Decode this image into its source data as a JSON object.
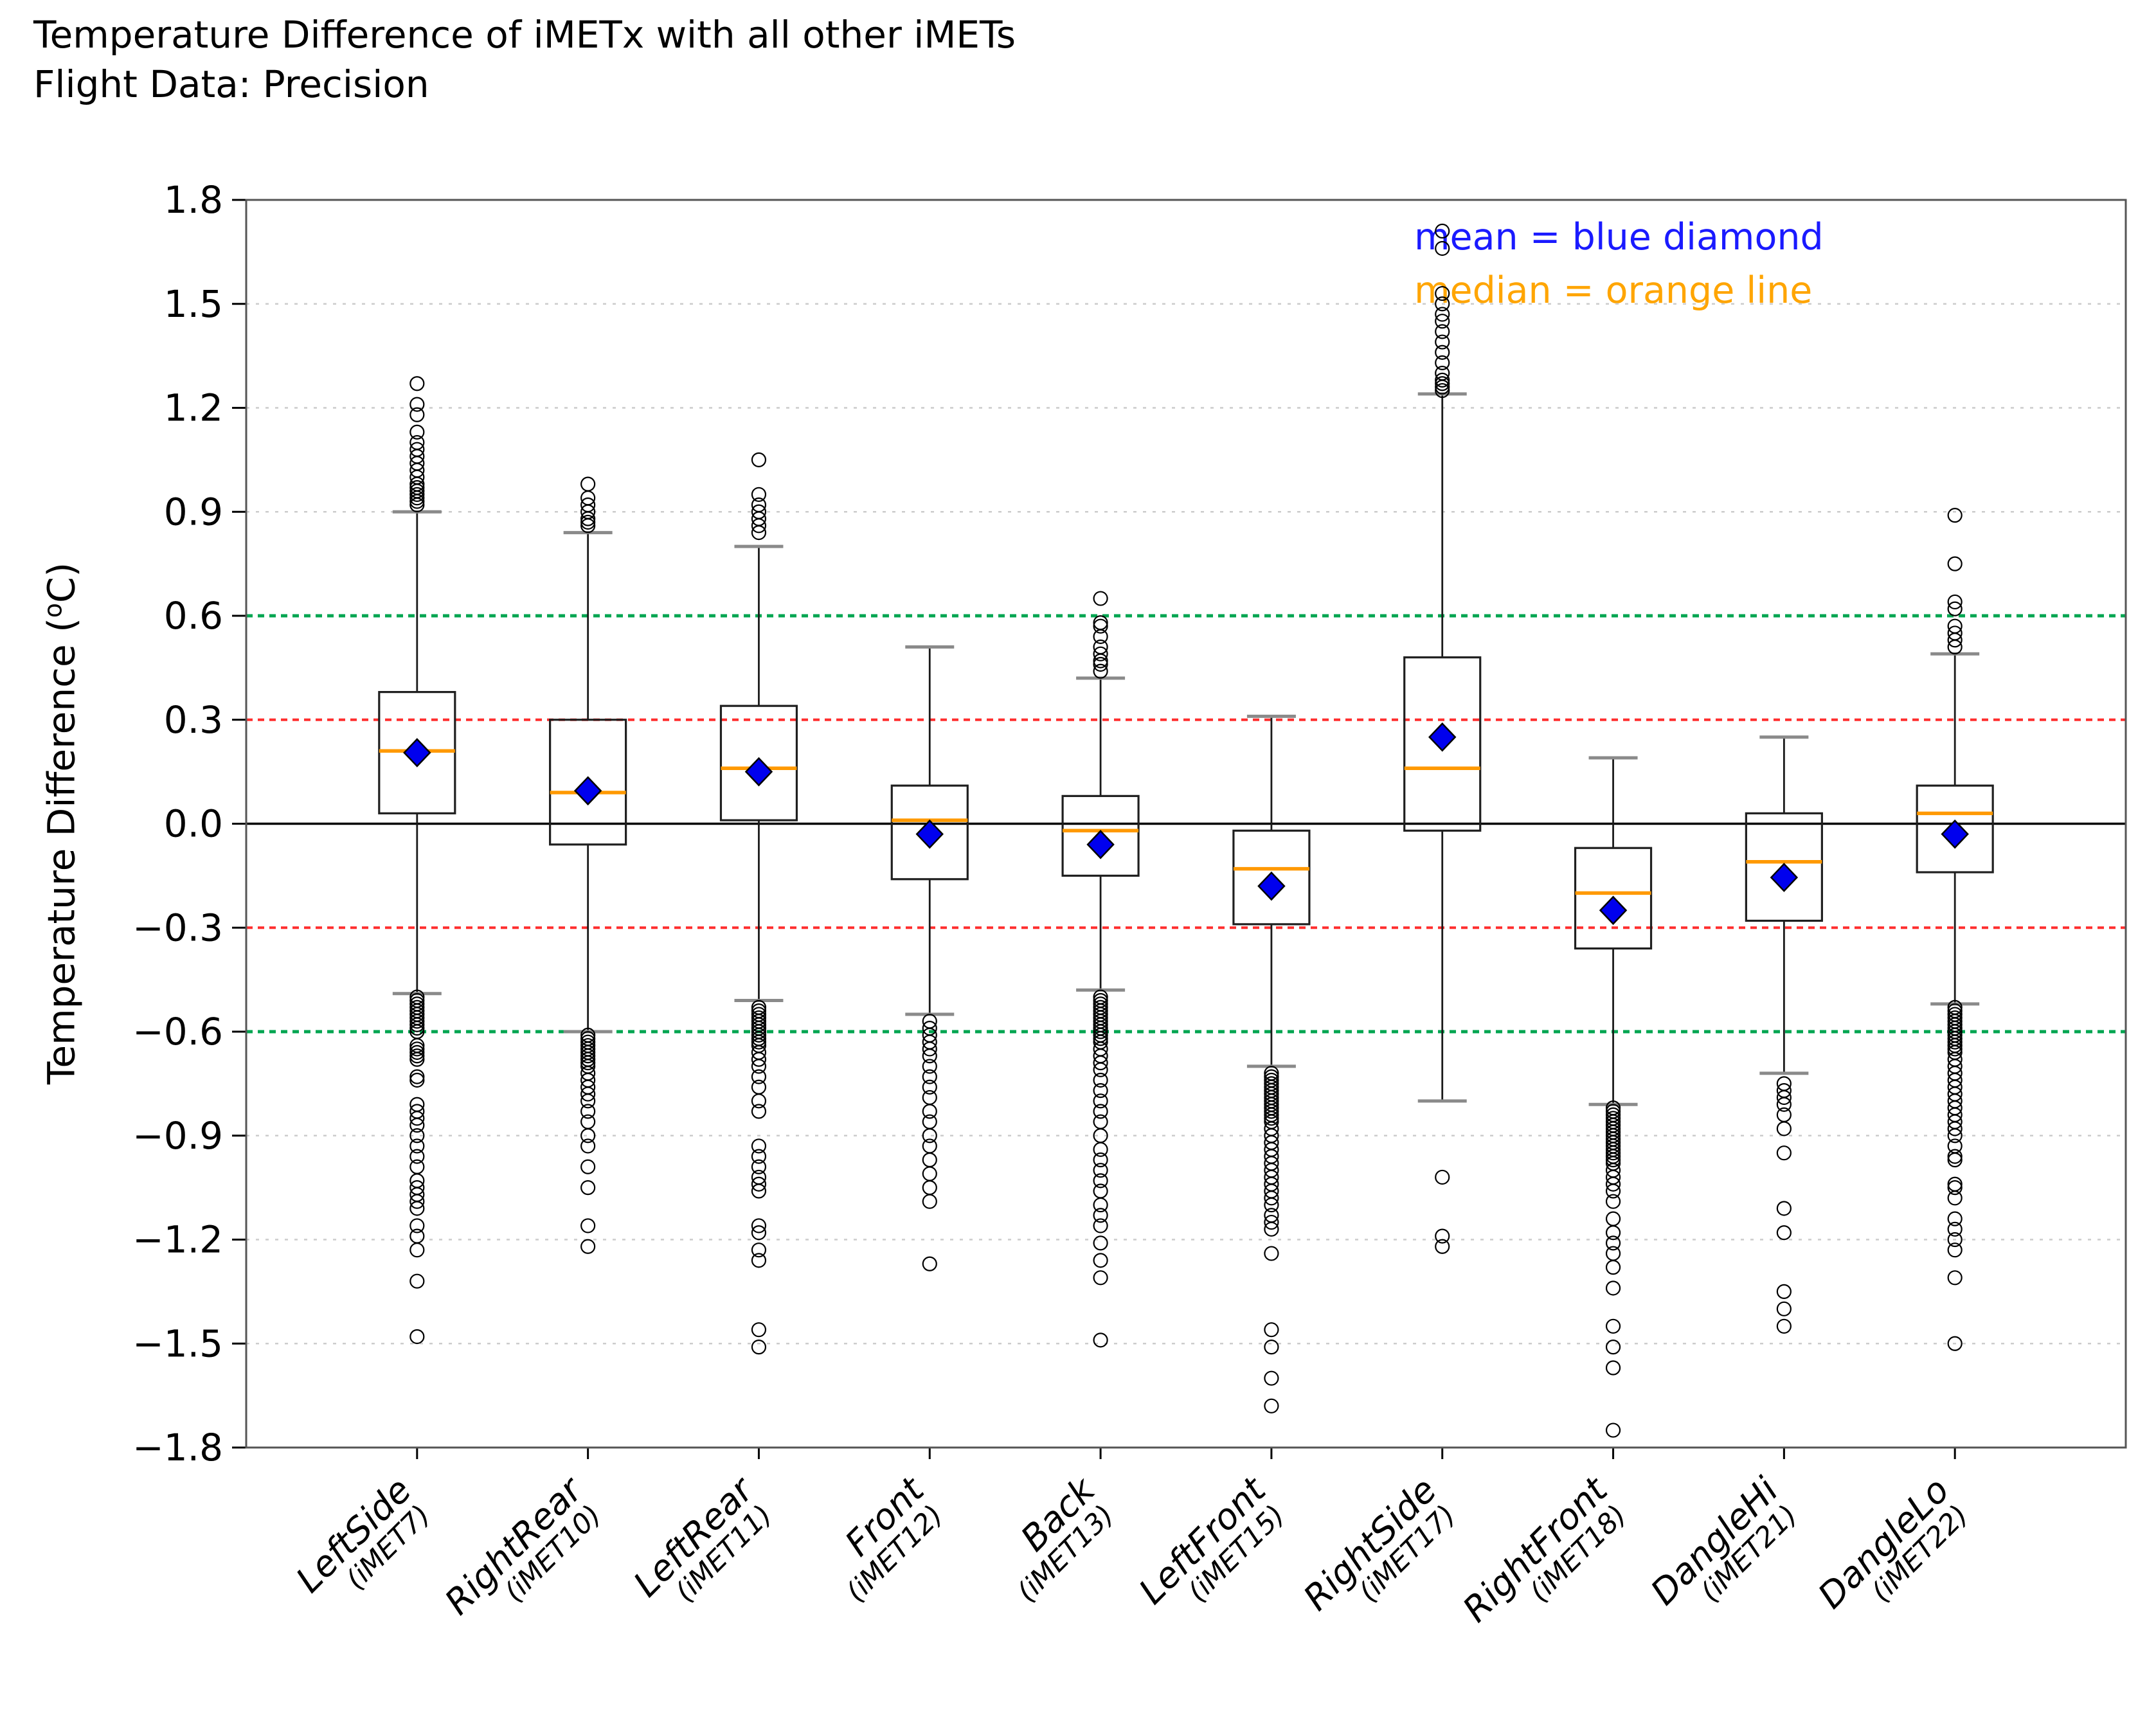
{
  "chart_data": {
    "type": "boxplot",
    "title": [
      "Temperature Difference of iMETx with all other iMETs",
      "Flight Data: Precision"
    ],
    "ylabel": {
      "prefix": "Temperature Difference (",
      "sup": "o",
      "suffix": "C)"
    },
    "legend": [
      {
        "label": "mean = blue diamond",
        "color": "#1a1aff"
      },
      {
        "label": "median = orange line",
        "color": "#ffa500"
      }
    ],
    "y_axis": {
      "min": -1.8,
      "max": 1.8,
      "ticks": [
        {
          "v": 1.8,
          "label": "1.8"
        },
        {
          "v": 1.5,
          "label": "1.5"
        },
        {
          "v": 1.2,
          "label": "1.2"
        },
        {
          "v": 0.9,
          "label": "0.9"
        },
        {
          "v": 0.6,
          "label": "0.6"
        },
        {
          "v": 0.3,
          "label": "0.3"
        },
        {
          "v": 0.0,
          "label": "0.0"
        },
        {
          "v": -0.3,
          "label": "−0.3"
        },
        {
          "v": -0.6,
          "label": "−0.6"
        },
        {
          "v": -0.9,
          "label": "−0.9"
        },
        {
          "v": -1.2,
          "label": "−1.2"
        },
        {
          "v": -1.5,
          "label": "−1.5"
        },
        {
          "v": -1.8,
          "label": "−1.8"
        }
      ]
    },
    "reference_lines": [
      {
        "y": 1.5,
        "color": "#cccccc",
        "style": "dotted",
        "width": 2.5
      },
      {
        "y": 1.2,
        "color": "#cccccc",
        "style": "dotted",
        "width": 2.5
      },
      {
        "y": 0.9,
        "color": "#cccccc",
        "style": "dotted",
        "width": 2.5
      },
      {
        "y": -0.9,
        "color": "#cccccc",
        "style": "dotted",
        "width": 2.5
      },
      {
        "y": -1.2,
        "color": "#cccccc",
        "style": "dotted",
        "width": 2.5
      },
      {
        "y": -1.5,
        "color": "#cccccc",
        "style": "dotted",
        "width": 2.5
      },
      {
        "y": 0.6,
        "color": "#00a550",
        "style": "dashed",
        "width": 5
      },
      {
        "y": -0.6,
        "color": "#00a550",
        "style": "dashed",
        "width": 5
      },
      {
        "y": 0.3,
        "color": "#ff2e2e",
        "style": "dashed",
        "width": 4
      },
      {
        "y": -0.3,
        "color": "#ff2e2e",
        "style": "dashed",
        "width": 4
      },
      {
        "y": 0.0,
        "color": "#000000",
        "style": "solid",
        "width": 3.5
      }
    ],
    "style": {
      "box_color": "#1f1f1f",
      "whisker_color": "#1a1a1a",
      "cap_color": "#8a8a8a",
      "median_color": "#ff9900",
      "mean_fill": "#0000ee",
      "mean_edge": "#000000",
      "flier_color": "#000000",
      "border_color": "#555555"
    },
    "categories": [
      {
        "name": "LeftSide",
        "imet": "(iMET7)"
      },
      {
        "name": "RightRear",
        "imet": "(iMET10)"
      },
      {
        "name": "LeftRear",
        "imet": "(iMET11)"
      },
      {
        "name": "Front",
        "imet": "(iMET12)"
      },
      {
        "name": "Back",
        "imet": "(iMET13)"
      },
      {
        "name": "LeftFront",
        "imet": "(iMET15)"
      },
      {
        "name": "RightSide",
        "imet": "(iMET17)"
      },
      {
        "name": "RightFront",
        "imet": "(iMET18)"
      },
      {
        "name": "DangleHi",
        "imet": "(iMET21)"
      },
      {
        "name": "DangleLo",
        "imet": "(iMET22)"
      }
    ],
    "boxes": [
      {
        "whislo": -0.49,
        "q1": 0.03,
        "med": 0.21,
        "mean": 0.205,
        "q3": 0.38,
        "whishi": 0.9,
        "fliers_high": [
          0.92,
          0.93,
          0.94,
          0.95,
          0.96,
          0.97,
          0.98,
          1.0,
          1.02,
          1.04,
          1.06,
          1.08,
          1.1,
          1.13,
          1.18,
          1.21,
          1.27
        ],
        "fliers_low": [
          -0.5,
          -0.51,
          -0.52,
          -0.53,
          -0.54,
          -0.55,
          -0.56,
          -0.57,
          -0.58,
          -0.59,
          -0.6,
          -0.64,
          -0.65,
          -0.66,
          -0.67,
          -0.68,
          -0.73,
          -0.74,
          -0.81,
          -0.83,
          -0.85,
          -0.87,
          -0.9,
          -0.93,
          -0.96,
          -0.99,
          -1.03,
          -1.05,
          -1.07,
          -1.09,
          -1.11,
          -1.16,
          -1.19,
          -1.23,
          -1.32,
          -1.48
        ]
      },
      {
        "whislo": -0.6,
        "q1": -0.06,
        "med": 0.09,
        "mean": 0.095,
        "q3": 0.3,
        "whishi": 0.84,
        "fliers_high": [
          0.86,
          0.87,
          0.88,
          0.9,
          0.92,
          0.94,
          0.98
        ],
        "fliers_low": [
          -0.61,
          -0.62,
          -0.63,
          -0.64,
          -0.65,
          -0.66,
          -0.67,
          -0.68,
          -0.69,
          -0.7,
          -0.72,
          -0.74,
          -0.76,
          -0.78,
          -0.8,
          -0.83,
          -0.86,
          -0.9,
          -0.93,
          -0.99,
          -1.05,
          -1.16,
          -1.22
        ]
      },
      {
        "whislo": -0.51,
        "q1": 0.01,
        "med": 0.16,
        "mean": 0.15,
        "q3": 0.34,
        "whishi": 0.8,
        "fliers_high": [
          0.84,
          0.86,
          0.88,
          0.9,
          0.92,
          0.95,
          1.05
        ],
        "fliers_low": [
          -0.53,
          -0.54,
          -0.55,
          -0.56,
          -0.57,
          -0.58,
          -0.59,
          -0.6,
          -0.61,
          -0.62,
          -0.63,
          -0.64,
          -0.66,
          -0.68,
          -0.7,
          -0.73,
          -0.76,
          -0.8,
          -0.83,
          -0.93,
          -0.96,
          -0.99,
          -1.02,
          -1.04,
          -1.06,
          -1.16,
          -1.18,
          -1.23,
          -1.26,
          -1.46,
          -1.51
        ]
      },
      {
        "whislo": -0.55,
        "q1": -0.16,
        "med": 0.01,
        "mean": -0.03,
        "q3": 0.11,
        "whishi": 0.51,
        "fliers_high": [],
        "fliers_low": [
          -0.57,
          -0.59,
          -0.61,
          -0.63,
          -0.65,
          -0.67,
          -0.7,
          -0.73,
          -0.76,
          -0.79,
          -0.83,
          -0.86,
          -0.9,
          -0.93,
          -0.97,
          -1.01,
          -1.05,
          -1.09,
          -1.27
        ]
      },
      {
        "whislo": -0.48,
        "q1": -0.15,
        "med": -0.02,
        "mean": -0.06,
        "q3": 0.08,
        "whishi": 0.42,
        "fliers_high": [
          0.44,
          0.46,
          0.47,
          0.49,
          0.51,
          0.54,
          0.57,
          0.58,
          0.65
        ],
        "fliers_low": [
          -0.5,
          -0.51,
          -0.52,
          -0.53,
          -0.54,
          -0.55,
          -0.56,
          -0.57,
          -0.58,
          -0.59,
          -0.6,
          -0.61,
          -0.62,
          -0.63,
          -0.65,
          -0.67,
          -0.69,
          -0.71,
          -0.74,
          -0.77,
          -0.8,
          -0.83,
          -0.86,
          -0.9,
          -0.94,
          -0.97,
          -1.0,
          -1.03,
          -1.06,
          -1.1,
          -1.13,
          -1.16,
          -1.21,
          -1.26,
          -1.31,
          -1.49
        ]
      },
      {
        "whislo": -0.7,
        "q1": -0.29,
        "med": -0.13,
        "mean": -0.18,
        "q3": -0.02,
        "whishi": 0.31,
        "fliers_high": [],
        "fliers_low": [
          -0.72,
          -0.73,
          -0.74,
          -0.75,
          -0.76,
          -0.77,
          -0.78,
          -0.79,
          -0.8,
          -0.81,
          -0.82,
          -0.83,
          -0.84,
          -0.85,
          -0.86,
          -0.88,
          -0.9,
          -0.92,
          -0.94,
          -0.96,
          -0.98,
          -1.0,
          -1.02,
          -1.04,
          -1.06,
          -1.08,
          -1.1,
          -1.13,
          -1.15,
          -1.17,
          -1.24,
          -1.46,
          -1.51,
          -1.6,
          -1.68
        ]
      },
      {
        "whislo": -0.8,
        "q1": -0.02,
        "med": 0.16,
        "mean": 0.25,
        "q3": 0.48,
        "whishi": 1.24,
        "fliers_high": [
          1.25,
          1.26,
          1.27,
          1.28,
          1.3,
          1.33,
          1.36,
          1.39,
          1.42,
          1.45,
          1.47,
          1.5,
          1.53,
          1.66,
          1.71
        ],
        "fliers_low": [
          -1.02,
          -1.19,
          -1.22
        ]
      },
      {
        "whislo": -0.81,
        "q1": -0.36,
        "med": -0.2,
        "mean": -0.25,
        "q3": -0.07,
        "whishi": 0.19,
        "fliers_high": [],
        "fliers_low": [
          -0.82,
          -0.83,
          -0.84,
          -0.85,
          -0.86,
          -0.87,
          -0.88,
          -0.89,
          -0.9,
          -0.91,
          -0.92,
          -0.93,
          -0.94,
          -0.95,
          -0.96,
          -0.97,
          -0.98,
          -1.0,
          -1.02,
          -1.04,
          -1.06,
          -1.09,
          -1.14,
          -1.18,
          -1.21,
          -1.24,
          -1.28,
          -1.34,
          -1.45,
          -1.51,
          -1.57,
          -1.75
        ]
      },
      {
        "whislo": -0.72,
        "q1": -0.28,
        "med": -0.11,
        "mean": -0.155,
        "q3": 0.03,
        "whishi": 0.25,
        "fliers_high": [],
        "fliers_low": [
          -0.75,
          -0.77,
          -0.79,
          -0.81,
          -0.84,
          -0.88,
          -0.95,
          -1.11,
          -1.18,
          -1.35,
          -1.4,
          -1.45
        ]
      },
      {
        "whislo": -0.52,
        "q1": -0.14,
        "med": 0.03,
        "mean": -0.03,
        "q3": 0.11,
        "whishi": 0.49,
        "fliers_high": [
          0.51,
          0.53,
          0.55,
          0.57,
          0.62,
          0.64,
          0.75,
          0.89
        ],
        "fliers_low": [
          -0.53,
          -0.54,
          -0.55,
          -0.56,
          -0.57,
          -0.58,
          -0.59,
          -0.6,
          -0.61,
          -0.62,
          -0.63,
          -0.64,
          -0.65,
          -0.66,
          -0.68,
          -0.7,
          -0.72,
          -0.74,
          -0.76,
          -0.78,
          -0.8,
          -0.82,
          -0.84,
          -0.86,
          -0.88,
          -0.9,
          -0.93,
          -0.96,
          -0.97,
          -1.04,
          -1.05,
          -1.08,
          -1.14,
          -1.17,
          -1.2,
          -1.23,
          -1.31,
          -1.5
        ]
      }
    ]
  }
}
